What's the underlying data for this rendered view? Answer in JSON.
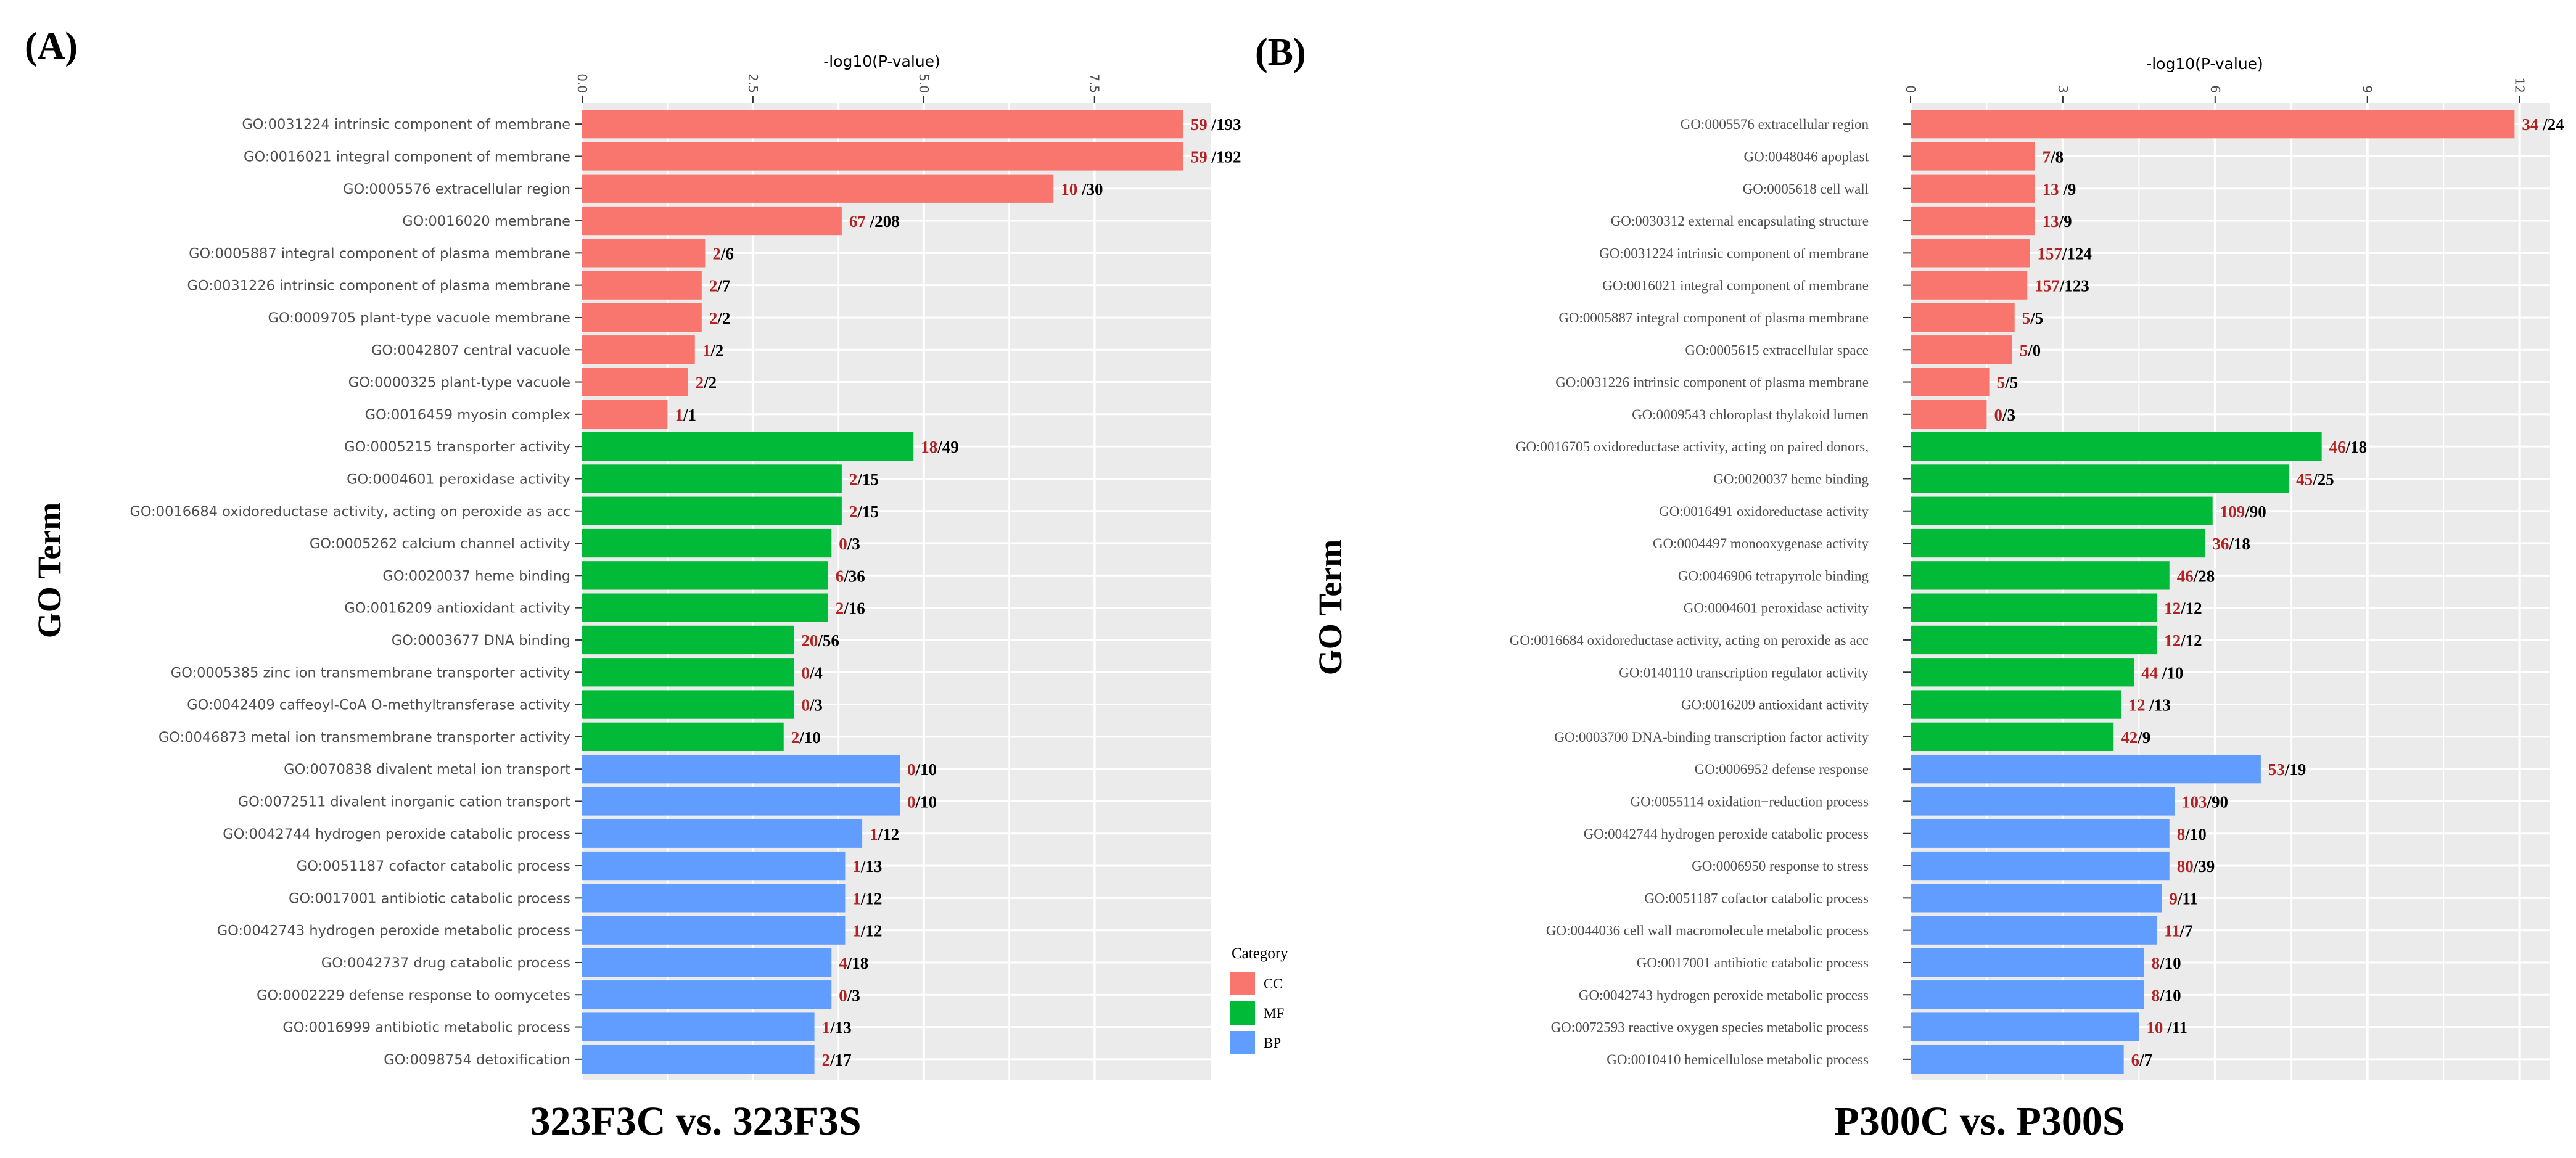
{
  "colors": {
    "CC": "#F8766D",
    "MF": "#00BA38",
    "BP": "#619CFF",
    "panel_bg": "#EBEBEB",
    "grid": "#FFFFFF",
    "up_count": "#B22222",
    "down_count": "#000000"
  },
  "legend": {
    "title": "Category",
    "entries": [
      {
        "key": "CC",
        "label": "CC"
      },
      {
        "key": "MF",
        "label": "MF"
      },
      {
        "key": "BP",
        "label": "BP"
      }
    ]
  },
  "chart_data": [
    {
      "type": "bar",
      "orientation": "horizontal",
      "panel_label": "(A)",
      "title": "323F3C vs. 323F3S",
      "xlabel": "-log10(P-value)",
      "ylabel": "GO Term",
      "xlim": [
        0,
        9.2
      ],
      "xticks": [
        0,
        2.5,
        5,
        7.5
      ],
      "xtick_labels": [
        "0.0",
        "2.5",
        "5.0",
        "7.5"
      ],
      "sep": " /",
      "terms": [
        {
          "term": "GO:0031224 intrinsic component of membrane",
          "category": "CC",
          "value": 8.8,
          "up": "59",
          "down": "193",
          "sep": " /"
        },
        {
          "term": "GO:0016021 integral component of membrane",
          "category": "CC",
          "value": 8.8,
          "up": "59",
          "down": "192",
          "sep": " /"
        },
        {
          "term": "GO:0005576 extracellular region",
          "category": "CC",
          "value": 6.9,
          "up": "10",
          "down": "30",
          "sep": " /"
        },
        {
          "term": "GO:0016020 membrane",
          "category": "CC",
          "value": 3.8,
          "up": "67",
          "down": "208",
          "sep": " /"
        },
        {
          "term": "GO:0005887 integral component of plasma membrane",
          "category": "CC",
          "value": 1.8,
          "up": "2",
          "down": "6",
          "sep": "/"
        },
        {
          "term": "GO:0031226 intrinsic component of plasma membrane",
          "category": "CC",
          "value": 1.75,
          "up": "2",
          "down": "7",
          "sep": "/"
        },
        {
          "term": "GO:0009705 plant-type vacuole membrane",
          "category": "CC",
          "value": 1.75,
          "up": "2",
          "down": "2",
          "sep": "/"
        },
        {
          "term": "GO:0042807 central vacuole",
          "category": "CC",
          "value": 1.65,
          "up": "1",
          "down": "2",
          "sep": "/"
        },
        {
          "term": "GO:0000325 plant-type vacuole",
          "category": "CC",
          "value": 1.55,
          "up": "2",
          "down": "2",
          "sep": "/"
        },
        {
          "term": "GO:0016459 myosin complex",
          "category": "CC",
          "value": 1.25,
          "up": "1",
          "down": "1",
          "sep": "/"
        },
        {
          "term": "GO:0005215 transporter activity",
          "category": "MF",
          "value": 4.85,
          "up": "18",
          "down": "49",
          "sep": "/"
        },
        {
          "term": "GO:0004601 peroxidase activity",
          "category": "MF",
          "value": 3.8,
          "up": "2",
          "down": "15",
          "sep": "/"
        },
        {
          "term": "GO:0016684 oxidoreductase activity, acting on peroxide as acc",
          "category": "MF",
          "value": 3.8,
          "up": "2",
          "down": "15",
          "sep": "/"
        },
        {
          "term": "GO:0005262 calcium channel activity",
          "category": "MF",
          "value": 3.65,
          "up": "0",
          "down": "3",
          "sep": "/"
        },
        {
          "term": "GO:0020037 heme binding",
          "category": "MF",
          "value": 3.6,
          "up": "6",
          "down": "36",
          "sep": "/"
        },
        {
          "term": "GO:0016209 antioxidant activity",
          "category": "MF",
          "value": 3.6,
          "up": "2",
          "down": "16",
          "sep": "/"
        },
        {
          "term": "GO:0003677 DNA binding",
          "category": "MF",
          "value": 3.1,
          "up": "20",
          "down": "56",
          "sep": "/"
        },
        {
          "term": "GO:0005385 zinc ion transmembrane transporter activity",
          "category": "MF",
          "value": 3.1,
          "up": "0",
          "down": "4",
          "sep": "/"
        },
        {
          "term": "GO:0042409 caffeoyl-CoA O-methyltransferase activity",
          "category": "MF",
          "value": 3.1,
          "up": "0",
          "down": "3",
          "sep": "/"
        },
        {
          "term": "GO:0046873 metal ion transmembrane transporter activity",
          "category": "MF",
          "value": 2.95,
          "up": "2",
          "down": "10",
          "sep": "/"
        },
        {
          "term": "GO:0070838 divalent metal ion transport",
          "category": "BP",
          "value": 4.65,
          "up": "0",
          "down": "10",
          "sep": "/"
        },
        {
          "term": "GO:0072511 divalent inorganic cation transport",
          "category": "BP",
          "value": 4.65,
          "up": "0",
          "down": "10",
          "sep": "/"
        },
        {
          "term": "GO:0042744 hydrogen peroxide catabolic process",
          "category": "BP",
          "value": 4.1,
          "up": "1",
          "down": "12",
          "sep": "/"
        },
        {
          "term": "GO:0051187 cofactor catabolic process",
          "category": "BP",
          "value": 3.85,
          "up": "1",
          "down": "13",
          "sep": "/"
        },
        {
          "term": "GO:0017001 antibiotic catabolic process",
          "category": "BP",
          "value": 3.85,
          "up": "1",
          "down": "12",
          "sep": "/"
        },
        {
          "term": "GO:0042743 hydrogen peroxide metabolic process",
          "category": "BP",
          "value": 3.85,
          "up": "1",
          "down": "12",
          "sep": "/"
        },
        {
          "term": "GO:0042737 drug catabolic process",
          "category": "BP",
          "value": 3.65,
          "up": "4",
          "down": "18",
          "sep": "/"
        },
        {
          "term": "GO:0002229 defense response to oomycetes",
          "category": "BP",
          "value": 3.65,
          "up": "0",
          "down": "3",
          "sep": "/"
        },
        {
          "term": "GO:0016999 antibiotic metabolic process",
          "category": "BP",
          "value": 3.4,
          "up": "1",
          "down": "13",
          "sep": "/"
        },
        {
          "term": "GO:0098754 detoxification",
          "category": "BP",
          "value": 3.4,
          "up": "2",
          "down": "17",
          "sep": "/"
        }
      ]
    },
    {
      "type": "bar",
      "orientation": "horizontal",
      "panel_label": "(B)",
      "title": "P300C vs. P300S",
      "xlabel": "-log10(P-value)",
      "ylabel": "GO Term",
      "xlim": [
        0,
        12.6
      ],
      "xticks": [
        0,
        3,
        6,
        9,
        12
      ],
      "xtick_labels": [
        "0",
        "3",
        "6",
        "9",
        "12"
      ],
      "terms": [
        {
          "term": "GO:0005576 extracellular region",
          "category": "CC",
          "value": 11.9,
          "up": "34",
          "down": "24",
          "sep": " /"
        },
        {
          "term": "GO:0048046 apoplast",
          "category": "CC",
          "value": 2.45,
          "up": "7",
          "down": "8",
          "sep": "/"
        },
        {
          "term": "GO:0005618 cell wall",
          "category": "CC",
          "value": 2.45,
          "up": "13",
          "down": "9",
          "sep": " /"
        },
        {
          "term": "GO:0030312 external encapsulating structure",
          "category": "CC",
          "value": 2.45,
          "up": "13",
          "down": "9",
          "sep": "/"
        },
        {
          "term": "GO:0031224 intrinsic component of membrane",
          "category": "CC",
          "value": 2.35,
          "up": "157",
          "down": "124",
          "sep": "/"
        },
        {
          "term": "GO:0016021 integral component of membrane",
          "category": "CC",
          "value": 2.3,
          "up": "157",
          "down": "123",
          "sep": "/"
        },
        {
          "term": "GO:0005887 integral component of plasma membrane",
          "category": "CC",
          "value": 2.05,
          "up": "5",
          "down": "5",
          "sep": "/"
        },
        {
          "term": "GO:0005615 extracellular space",
          "category": "CC",
          "value": 2.0,
          "up": "5",
          "down": "0",
          "sep": "/"
        },
        {
          "term": "GO:0031226 intrinsic component of plasma membrane",
          "category": "CC",
          "value": 1.55,
          "up": "5",
          "down": "5",
          "sep": "/"
        },
        {
          "term": "GO:0009543 chloroplast thylakoid lumen",
          "category": "CC",
          "value": 1.5,
          "up": "0",
          "down": "3",
          "sep": "/"
        },
        {
          "term": "GO:0016705 oxidoreductase activity, acting on paired donors,",
          "category": "MF",
          "value": 8.1,
          "up": "46",
          "down": "18",
          "sep": "/"
        },
        {
          "term": "GO:0020037 heme binding",
          "category": "MF",
          "value": 7.45,
          "up": "45",
          "down": "25",
          "sep": "/"
        },
        {
          "term": "GO:0016491 oxidoreductase activity",
          "category": "MF",
          "value": 5.95,
          "up": "109",
          "down": "90",
          "sep": "/"
        },
        {
          "term": "GO:0004497 monooxygenase activity",
          "category": "MF",
          "value": 5.8,
          "up": "36",
          "down": "18",
          "sep": "/"
        },
        {
          "term": "GO:0046906 tetrapyrrole binding",
          "category": "MF",
          "value": 5.1,
          "up": "46",
          "down": "28",
          "sep": "/"
        },
        {
          "term": "GO:0004601 peroxidase activity",
          "category": "MF",
          "value": 4.85,
          "up": "12",
          "down": "12",
          "sep": "/"
        },
        {
          "term": "GO:0016684 oxidoreductase activity, acting on peroxide as acc",
          "category": "MF",
          "value": 4.85,
          "up": "12",
          "down": "12",
          "sep": "/"
        },
        {
          "term": "GO:0140110 transcription regulator activity",
          "category": "MF",
          "value": 4.4,
          "up": "44",
          "down": "10",
          "sep": " /"
        },
        {
          "term": "GO:0016209 antioxidant activity",
          "category": "MF",
          "value": 4.15,
          "up": "12",
          "down": "13",
          "sep": " /"
        },
        {
          "term": "GO:0003700 DNA-binding transcription factor activity",
          "category": "MF",
          "value": 4.0,
          "up": "42",
          "down": "9",
          "sep": "/"
        },
        {
          "term": "GO:0006952 defense response",
          "category": "BP",
          "value": 6.9,
          "up": "53",
          "down": "19",
          "sep": "/"
        },
        {
          "term": "GO:0055114 oxidation−reduction process",
          "category": "BP",
          "value": 5.2,
          "up": "103",
          "down": "90",
          "sep": "/"
        },
        {
          "term": "GO:0042744 hydrogen peroxide catabolic process",
          "category": "BP",
          "value": 5.1,
          "up": "8",
          "down": "10",
          "sep": "/"
        },
        {
          "term": "GO:0006950 response to stress",
          "category": "BP",
          "value": 5.1,
          "up": "80",
          "down": "39",
          "sep": "/"
        },
        {
          "term": "GO:0051187 cofactor catabolic process",
          "category": "BP",
          "value": 4.95,
          "up": "9",
          "down": "11",
          "sep": "/"
        },
        {
          "term": "GO:0044036 cell wall macromolecule metabolic process",
          "category": "BP",
          "value": 4.85,
          "up": "11",
          "down": "7",
          "sep": "/"
        },
        {
          "term": "GO:0017001 antibiotic catabolic process",
          "category": "BP",
          "value": 4.6,
          "up": "8",
          "down": "10",
          "sep": "/"
        },
        {
          "term": "GO:0042743 hydrogen peroxide metabolic process",
          "category": "BP",
          "value": 4.6,
          "up": "8",
          "down": "10",
          "sep": "/"
        },
        {
          "term": "GO:0072593 reactive oxygen species metabolic process",
          "category": "BP",
          "value": 4.5,
          "up": "10",
          "down": "11",
          "sep": " /"
        },
        {
          "term": "GO:0010410 hemicellulose metabolic process",
          "category": "BP",
          "value": 4.2,
          "up": "6",
          "down": "7",
          "sep": "/"
        }
      ]
    }
  ]
}
